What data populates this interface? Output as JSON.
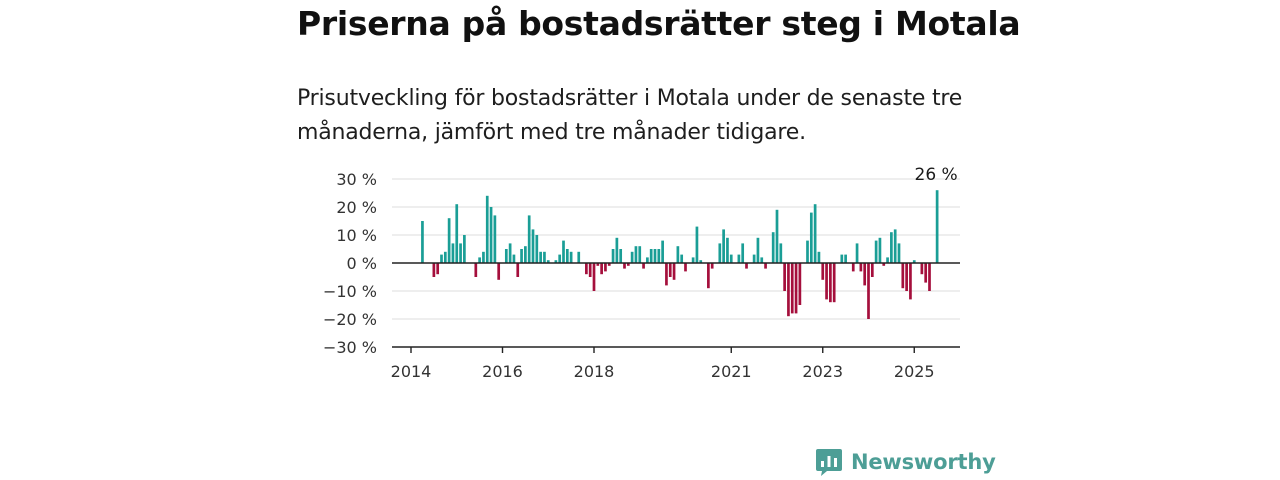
{
  "header": {
    "title": "Priserna på bostadsrätter steg i Motala",
    "subtitle": "Prisutveckling för bostadsrätter i Motala under de senaste tre månaderna, jämfört med tre månader tidigare."
  },
  "brand": {
    "name": "Newsworthy",
    "logo_icon": "bar-chart-icon",
    "color": "#4d9e96"
  },
  "colors": {
    "positive": "#1a9e96",
    "negative": "#a50f3c",
    "grid": "#dcdcdc",
    "zero_line": "#222222"
  },
  "chart_data": {
    "type": "bar",
    "title": "Priserna på bostadsrätter steg i Motala",
    "subtitle": "Prisutveckling för bostadsrätter i Motala under de senaste tre månaderna, jämfört med tre månader tidigare.",
    "unit": "%",
    "ylim": [
      -30,
      30
    ],
    "y_ticks": [
      {
        "value": 30,
        "label": "30 %"
      },
      {
        "value": 20,
        "label": "20 %"
      },
      {
        "value": 10,
        "label": "10 %"
      },
      {
        "value": 0,
        "label": "0 %"
      },
      {
        "value": -10,
        "label": "−10 %"
      },
      {
        "value": -20,
        "label": "−20 %"
      },
      {
        "value": -30,
        "label": "−30 %"
      }
    ],
    "x_ticks": [
      {
        "month_index": 0,
        "label": "2014"
      },
      {
        "month_index": 24,
        "label": "2016"
      },
      {
        "month_index": 48,
        "label": "2018"
      },
      {
        "month_index": 84,
        "label": "2021"
      },
      {
        "month_index": 108,
        "label": "2023"
      },
      {
        "month_index": 132,
        "label": "2025"
      }
    ],
    "grid": true,
    "start": "2014-01",
    "values": [
      null,
      null,
      null,
      15,
      null,
      null,
      -5,
      -4,
      3,
      4,
      16,
      7,
      21,
      7,
      10,
      null,
      null,
      -5,
      2,
      4,
      24,
      20,
      17,
      -6,
      null,
      5,
      7,
      3,
      -5,
      5,
      6,
      17,
      12,
      10,
      4,
      4,
      1,
      null,
      1,
      3,
      8,
      5,
      4,
      null,
      4,
      null,
      -4,
      -5,
      -10,
      -1,
      -4,
      -3,
      -1,
      5,
      9,
      5,
      -2,
      -1,
      4,
      6,
      6,
      -2,
      2,
      5,
      5,
      5,
      8,
      -8,
      -5,
      -6,
      6,
      3,
      -3,
      null,
      2,
      13,
      1,
      null,
      -9,
      -2,
      null,
      7,
      12,
      9,
      3,
      null,
      3,
      7,
      -2,
      null,
      3,
      9,
      2,
      -2,
      null,
      11,
      19,
      7,
      -10,
      -19,
      -18,
      -18,
      -15,
      null,
      8,
      18,
      21,
      4,
      -6,
      -13,
      -14,
      -14,
      null,
      3,
      3,
      null,
      -3,
      7,
      -3,
      -8,
      -20,
      -5,
      8,
      9,
      -1,
      2,
      11,
      12,
      7,
      -9,
      -10,
      -13,
      1,
      null,
      -4,
      -7,
      -10,
      null,
      26
    ],
    "annotation": {
      "month_index": 138,
      "text": "26 %"
    }
  }
}
